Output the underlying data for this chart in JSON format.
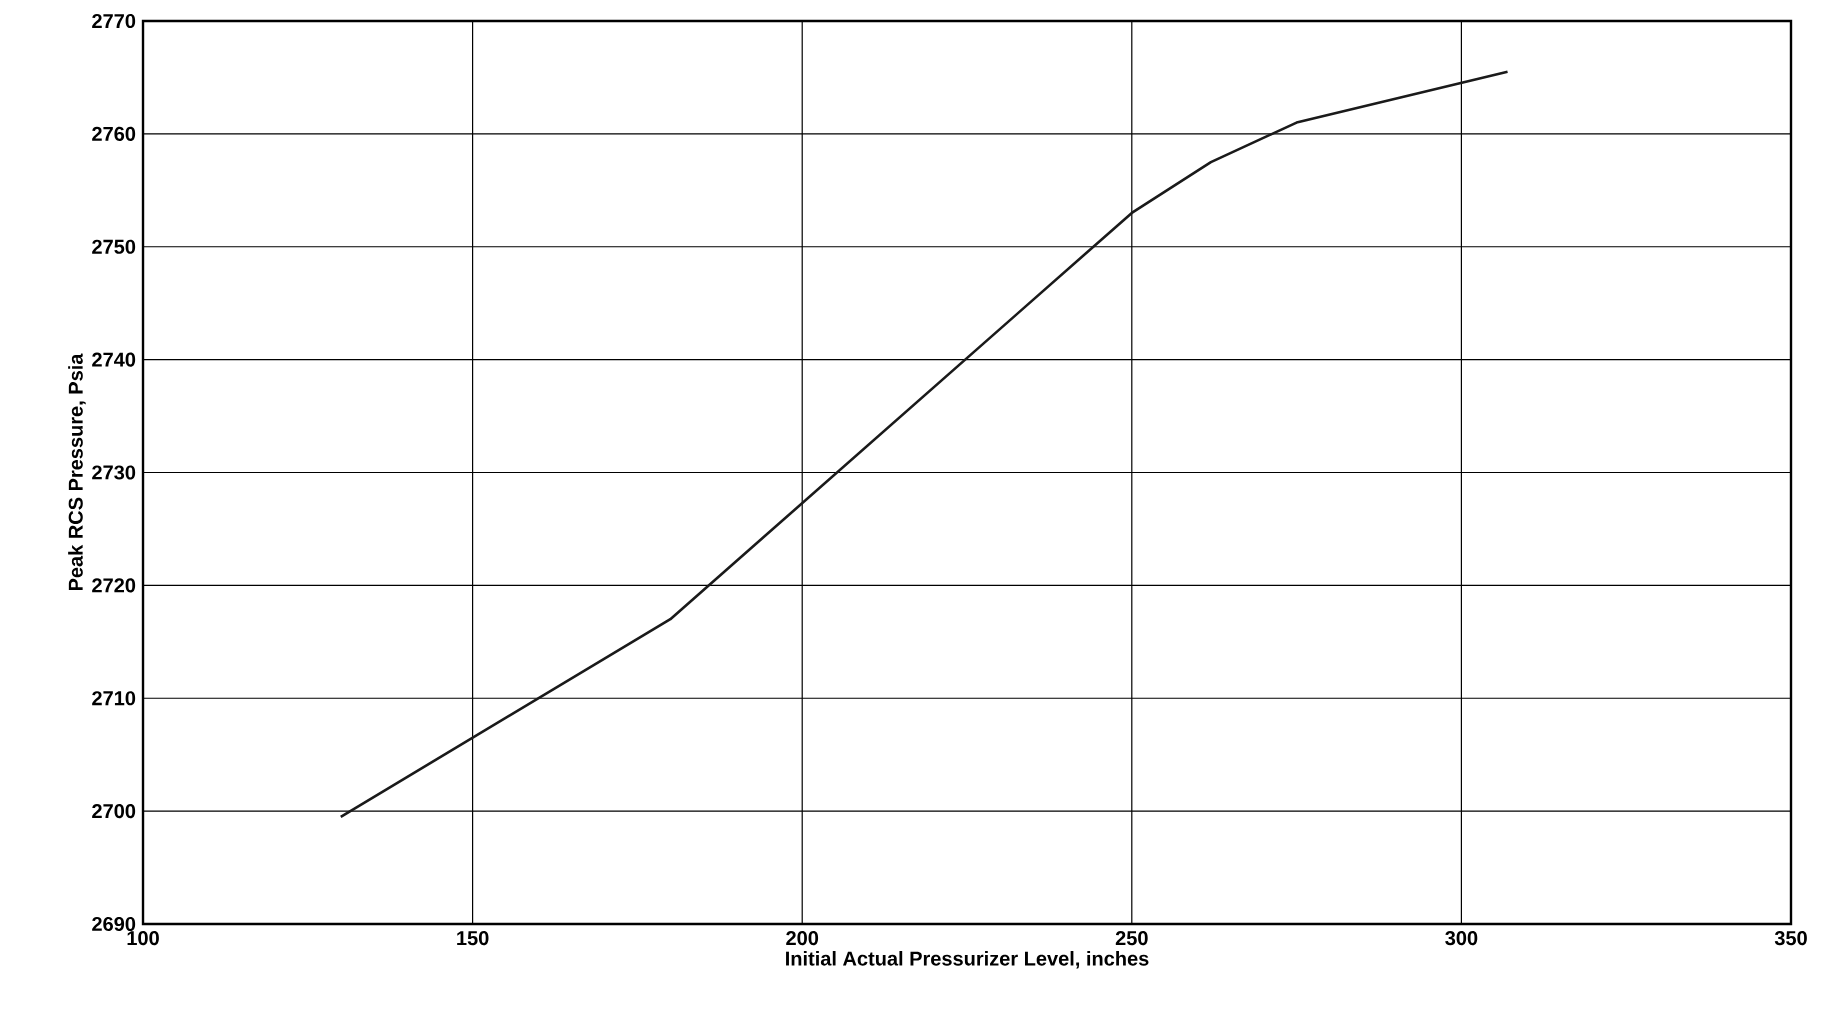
{
  "chart_data": {
    "type": "line",
    "xlabel": "Initial Actual Pressurizer Level, inches",
    "ylabel": "Peak RCS Pressure, Psia",
    "series": [
      {
        "color": "#1a1a1a",
        "x": [
          130,
          180,
          250,
          262,
          275,
          307
        ],
        "values": [
          2699.5,
          2717,
          2753,
          2757.5,
          2761,
          2765.5
        ]
      }
    ],
    "xlim": [
      100,
      350
    ],
    "xticks": [
      100,
      150,
      200,
      250,
      300,
      350
    ],
    "ylim": [
      2690,
      2770
    ],
    "yticks": [
      2690,
      2700,
      2710,
      2720,
      2730,
      2740,
      2750,
      2760,
      2770
    ],
    "grid": true,
    "marker": "none",
    "line_style": "solid"
  }
}
